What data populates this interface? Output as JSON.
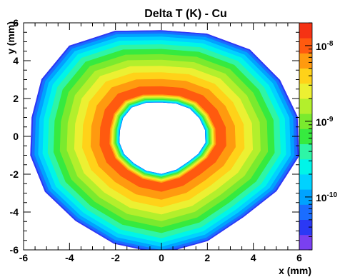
{
  "chart_data": {
    "type": "heatmap",
    "subtype": "filled-contour",
    "title": "Delta T (K) - Cu",
    "xlabel": "x (mm)",
    "ylabel": "y (mm)",
    "xlim": [
      -6,
      6
    ],
    "ylim": [
      -6,
      6
    ],
    "x_ticks": [
      "-6",
      "-4",
      "-2",
      "0",
      "2",
      "4",
      "6"
    ],
    "y_ticks": [
      "-6",
      "-4",
      "-2",
      "0",
      "2",
      "4",
      "6"
    ],
    "z_scale": "log",
    "zlim": [
      2e-11,
      2e-08
    ],
    "z_ticks": [
      {
        "base": "10",
        "exp": "-8",
        "value": 1e-08
      },
      {
        "base": "10",
        "exp": "-9",
        "value": 1e-09
      },
      {
        "base": "10",
        "exp": "-10",
        "value": 1e-10
      }
    ],
    "color_stops": [
      "#7a40f0",
      "#2b39f5",
      "#1a6dff",
      "#00a3ff",
      "#00d2ff",
      "#00f5e8",
      "#2ef5a6",
      "#36ea3f",
      "#7aea2e",
      "#b3ef2c",
      "#ecf032",
      "#ffd219",
      "#ff9a0f",
      "#ff5a0f",
      "#f53214"
    ],
    "ring": {
      "center": [
        0,
        0
      ],
      "inner_radius_mm": 1.9,
      "outer_radius_mm": 5.9,
      "peak_radius_mm": 2.4,
      "peak_value": 1.2e-08,
      "outer_edge_value": 3e-11,
      "inner_edge_value": 7e-11,
      "shape": "radial ring, hollow center, polygonal edges"
    }
  }
}
